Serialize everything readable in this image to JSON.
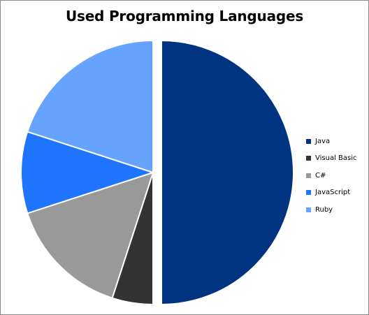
{
  "chart_data": {
    "type": "pie",
    "title": "Used Programming Languages",
    "categories": [
      "Java",
      "Visual Basic",
      "C#",
      "JavaScript",
      "Ruby"
    ],
    "values": [
      50,
      5,
      15,
      10,
      20
    ],
    "unit": "%",
    "exploded": [
      "Java"
    ],
    "legend_position": "right",
    "colors": [
      "#003380",
      "#333333",
      "#999999",
      "#1f75ff",
      "#66a3ff"
    ],
    "series": [
      {
        "values": [
          50,
          5,
          15,
          10,
          20
        ]
      }
    ]
  }
}
